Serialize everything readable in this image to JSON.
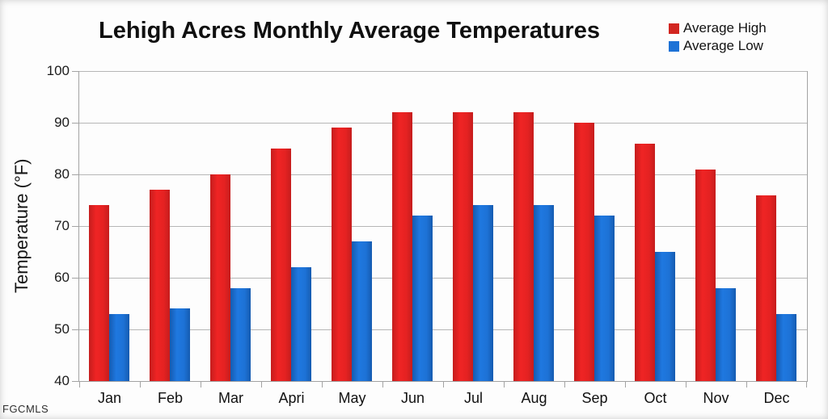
{
  "title": "Lehigh Acres Monthly Average Temperatures",
  "watermark": "FGCMLS",
  "legend": [
    {
      "label": "Average High",
      "color": "#d22620"
    },
    {
      "label": "Average Low",
      "color": "#1d72d6"
    }
  ],
  "chart_data": {
    "type": "bar",
    "title": "Lehigh Acres Monthly Average Temperatures",
    "categories": [
      "Jan",
      "Feb",
      "Mar",
      "Apri",
      "May",
      "Jun",
      "Jul",
      "Aug",
      "Sep",
      "Oct",
      "Nov",
      "Dec"
    ],
    "series": [
      {
        "name": "Average High",
        "color": "#e52222",
        "values": [
          74,
          77,
          80,
          85,
          89,
          92,
          92,
          92,
          90,
          86,
          81,
          76
        ]
      },
      {
        "name": "Average Low",
        "color": "#1d72d6",
        "values": [
          53,
          54,
          58,
          62,
          67,
          72,
          74,
          74,
          72,
          65,
          58,
          53
        ]
      }
    ],
    "xlabel": "",
    "ylabel": "Temperature (°F)",
    "ylim": [
      40,
      100
    ],
    "yticks": [
      40,
      50,
      60,
      70,
      80,
      90,
      100
    ],
    "grid": true,
    "legend_position": "top-right"
  }
}
